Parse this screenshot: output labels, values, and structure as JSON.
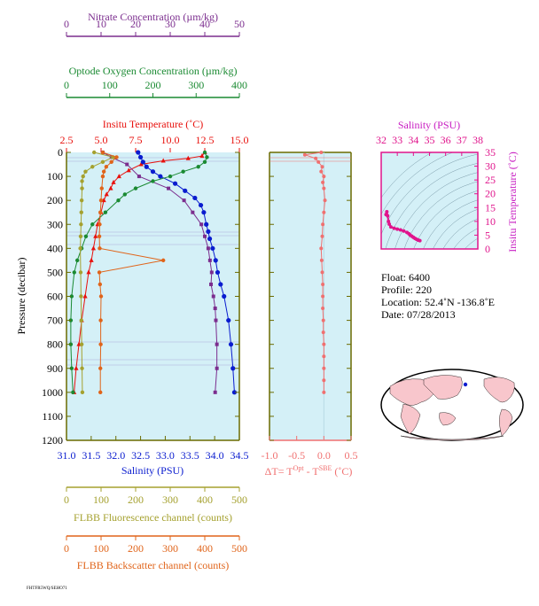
{
  "chart_data": [
    {
      "id": "profile",
      "type": "line",
      "ylabel": "Pressure (decibar)",
      "ylim": [
        1200,
        0
      ],
      "yticks": [
        0,
        100,
        200,
        300,
        400,
        500,
        600,
        700,
        800,
        900,
        1000,
        1100,
        1200
      ],
      "axes": [
        {
          "key": "nitrate",
          "label": "Nitrate Concentration (µm/kg)",
          "color": "#7b2d8e",
          "range": [
            0,
            50
          ],
          "ticks": [
            0,
            10,
            20,
            30,
            40,
            50
          ]
        },
        {
          "key": "oxygen",
          "label": "Optode Oxygen Concentration (µm/kg)",
          "color": "#1a8a32",
          "range": [
            0,
            400
          ],
          "ticks": [
            0,
            100,
            200,
            300,
            400
          ]
        },
        {
          "key": "temp",
          "label": "Insitu Temperature (˚C)",
          "color": "#e8110d",
          "range": [
            2.5,
            15.0
          ],
          "ticks": [
            "2.5",
            "5.0",
            "7.5",
            "10.0",
            "12.5",
            "15.0"
          ]
        },
        {
          "key": "salinity",
          "label": "Salinity (PSU)",
          "color": "#0a1ccf",
          "range": [
            31.0,
            34.5
          ],
          "ticks": [
            "31.0",
            "31.5",
            "32.0",
            "32.5",
            "33.0",
            "33.5",
            "34.0",
            "34.5"
          ]
        },
        {
          "key": "fluor",
          "label": "FLBB Fluorescence channel (counts)",
          "color": "#a5a12f",
          "range": [
            0,
            500
          ],
          "ticks": [
            0,
            100,
            200,
            300,
            400,
            500
          ]
        },
        {
          "key": "backscatter",
          "label": "FLBB Backscatter channel (counts)",
          "color": "#e0641a",
          "range": [
            0,
            500
          ],
          "ticks": [
            0,
            100,
            200,
            300,
            400,
            500
          ]
        }
      ],
      "series": [
        {
          "key": "temp",
          "color": "#e8110d",
          "p": [
            0,
            15,
            25,
            35,
            50,
            75,
            100,
            125,
            150,
            175,
            200,
            250,
            300,
            350,
            400,
            450,
            500,
            600,
            700,
            800,
            900,
            1000
          ],
          "values": [
            12.5,
            12.3,
            11.3,
            9.5,
            7.9,
            7.0,
            6.3,
            5.9,
            5.7,
            5.4,
            5.2,
            5.0,
            4.75,
            4.6,
            4.45,
            4.3,
            4.1,
            3.85,
            3.6,
            3.4,
            3.2,
            3.05
          ]
        },
        {
          "key": "salinity",
          "color": "#0a1ccf",
          "p": [
            0,
            20,
            40,
            60,
            80,
            100,
            130,
            160,
            190,
            220,
            250,
            300,
            330,
            360,
            400,
            450,
            500,
            550,
            600,
            700,
            800,
            900,
            1000
          ],
          "values": [
            32.45,
            32.5,
            32.55,
            32.62,
            32.75,
            32.9,
            33.2,
            33.4,
            33.6,
            33.72,
            33.78,
            33.83,
            33.87,
            33.9,
            33.96,
            34.02,
            34.06,
            34.12,
            34.19,
            34.28,
            34.33,
            34.37,
            34.4
          ]
        },
        {
          "key": "nitrate",
          "color": "#7b2d8e",
          "p": [
            0,
            20,
            50,
            100,
            150,
            200,
            250,
            300,
            350,
            400,
            450,
            500,
            550,
            600,
            650,
            700,
            800,
            900,
            1000
          ],
          "values": [
            10.5,
            13.0,
            17.5,
            21.0,
            29.5,
            34.0,
            36.5,
            39.0,
            40.0,
            41.0,
            41.5,
            42.0,
            41.8,
            42.5,
            43.0,
            43.2,
            43.5,
            43.5,
            43.0
          ]
        },
        {
          "key": "oxygen",
          "color": "#1a8a32",
          "p": [
            0,
            20,
            40,
            60,
            80,
            100,
            120,
            150,
            175,
            200,
            250,
            300,
            350,
            400,
            450,
            500,
            600,
            700,
            800,
            900,
            1000
          ],
          "values": [
            320,
            325,
            320,
            305,
            270,
            240,
            200,
            160,
            135,
            120,
            90,
            60,
            45,
            35,
            25,
            18,
            12,
            10,
            10,
            12,
            15
          ]
        },
        {
          "key": "fluor",
          "color": "#a5a12f",
          "p": [
            0,
            20,
            40,
            60,
            80,
            100,
            120,
            150,
            200,
            250,
            300,
            350,
            400,
            500,
            600,
            700,
            800,
            900,
            1000
          ],
          "values": [
            80,
            135,
            105,
            75,
            55,
            48,
            45,
            45,
            44,
            43,
            42,
            41,
            40,
            41,
            42,
            43,
            44,
            45,
            46
          ]
        },
        {
          "key": "backscatter",
          "color": "#e0641a",
          "p": [
            0,
            20,
            40,
            60,
            80,
            100,
            150,
            200,
            250,
            300,
            350,
            400,
            450,
            500,
            550,
            600,
            700,
            800,
            900,
            1000
          ],
          "values": [
            105,
            145,
            130,
            115,
            108,
            105,
            102,
            100,
            98,
            96,
            95,
            96,
            280,
            95,
            97,
            100,
            99,
            99,
            98,
            98
          ]
        }
      ]
    },
    {
      "id": "delta",
      "type": "line",
      "xlabel_main": "ΔT= T",
      "xlabel_sup1": "Opt",
      "xlabel_mid": " - T",
      "xlabel_sup2": "SBE",
      "xlabel_end": " (˚C)",
      "xlim": [
        -1.0,
        0.5
      ],
      "xticks": [
        "-1.0",
        "-0.5",
        "0.0",
        "0.5"
      ],
      "ylim": [
        1200,
        0
      ],
      "color": "#f07070",
      "series": [
        {
          "name": "",
          "p": [
            0,
            10,
            25,
            40,
            60,
            80,
            100,
            125,
            150,
            200,
            250,
            300,
            350,
            400,
            450,
            500,
            550,
            600,
            650,
            700,
            750,
            800,
            850,
            900,
            950,
            1000
          ],
          "values": [
            -0.05,
            -0.35,
            -0.15,
            -0.1,
            -0.03,
            -0.05,
            0.0,
            -0.02,
            0.0,
            0.02,
            0.0,
            -0.02,
            -0.03,
            -0.05,
            -0.04,
            -0.03,
            -0.02,
            -0.02,
            -0.02,
            -0.01,
            -0.01,
            0.0,
            0.0,
            0.0,
            0.0,
            0.0
          ]
        }
      ]
    },
    {
      "id": "ts",
      "type": "scatter",
      "title": "Salinity (PSU)",
      "ylabel": "Insitu Temperature (˚C)",
      "color": "#e0148c",
      "xlim": [
        32,
        38
      ],
      "ylim": [
        0,
        35
      ],
      "xticks": [
        32,
        33,
        34,
        35,
        36,
        37,
        38
      ],
      "yticks": [
        0,
        5,
        10,
        15,
        20,
        25,
        30,
        35
      ],
      "points": [
        [
          32.3,
          12.5
        ],
        [
          32.35,
          13.5
        ],
        [
          32.4,
          12.0
        ],
        [
          32.45,
          10.0
        ],
        [
          32.5,
          9.0
        ],
        [
          32.6,
          8.0
        ],
        [
          32.8,
          7.5
        ],
        [
          33.0,
          7.2
        ],
        [
          33.2,
          6.9
        ],
        [
          33.4,
          6.5
        ],
        [
          33.6,
          6.0
        ],
        [
          33.72,
          5.5
        ],
        [
          33.8,
          5.0
        ],
        [
          33.9,
          4.6
        ],
        [
          34.0,
          4.2
        ],
        [
          34.1,
          3.8
        ],
        [
          34.2,
          3.5
        ],
        [
          34.3,
          3.2
        ],
        [
          34.4,
          3.0
        ]
      ]
    }
  ],
  "info": {
    "float": "Float:  6400",
    "profile": "Profile:  220",
    "location": "Location:  52.4˚N  -136.8˚E",
    "date": "Date:  07/28/2013"
  },
  "colors": {
    "plot_bg": "#d4f0f7",
    "axis": "#6b6b00",
    "land": "#f8c6cc",
    "map_ocean": "#ffffff"
  },
  "footer": "FHTFR5WQ/SEHO71"
}
